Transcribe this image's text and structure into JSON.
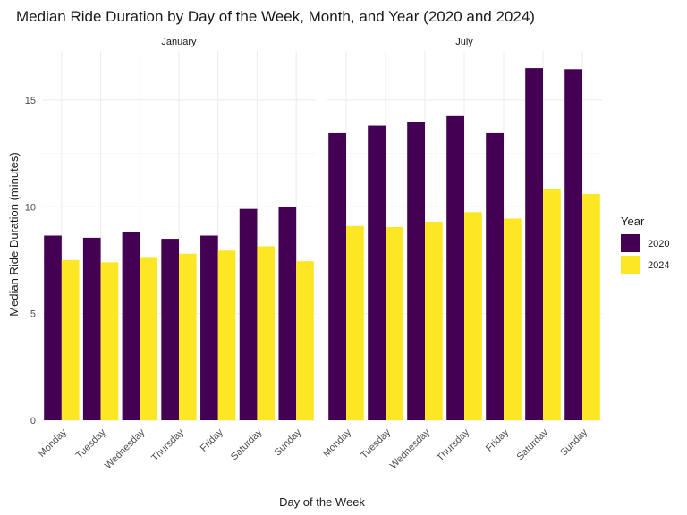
{
  "chart_data": {
    "type": "bar",
    "title": "Median Ride Duration by Day of the Week, Month, and Year (2020 and 2024)",
    "xlabel": "Day of the Week",
    "ylabel": "Median Ride Duration (minutes)",
    "ylim": [
      0,
      17.3
    ],
    "y_ticks": [
      0,
      5,
      10,
      15
    ],
    "grid": true,
    "legend": {
      "title": "Year",
      "position": "right"
    },
    "categories": [
      "Monday",
      "Tuesday",
      "Wednesday",
      "Thursday",
      "Friday",
      "Saturday",
      "Sunday"
    ],
    "facets": [
      {
        "label": "January",
        "series": [
          {
            "name": "2020",
            "color": "#440154",
            "values": [
              8.65,
              8.55,
              8.8,
              8.5,
              8.65,
              9.9,
              10.0
            ]
          },
          {
            "name": "2024",
            "color": "#FDE725",
            "values": [
              7.5,
              7.4,
              7.65,
              7.8,
              7.95,
              8.15,
              7.45
            ]
          }
        ]
      },
      {
        "label": "July",
        "series": [
          {
            "name": "2020",
            "color": "#440154",
            "values": [
              13.45,
              13.8,
              13.95,
              14.25,
              13.45,
              16.5,
              16.45
            ]
          },
          {
            "name": "2024",
            "color": "#FDE725",
            "values": [
              9.1,
              9.05,
              9.3,
              9.75,
              9.45,
              10.85,
              10.6
            ]
          }
        ]
      }
    ]
  }
}
